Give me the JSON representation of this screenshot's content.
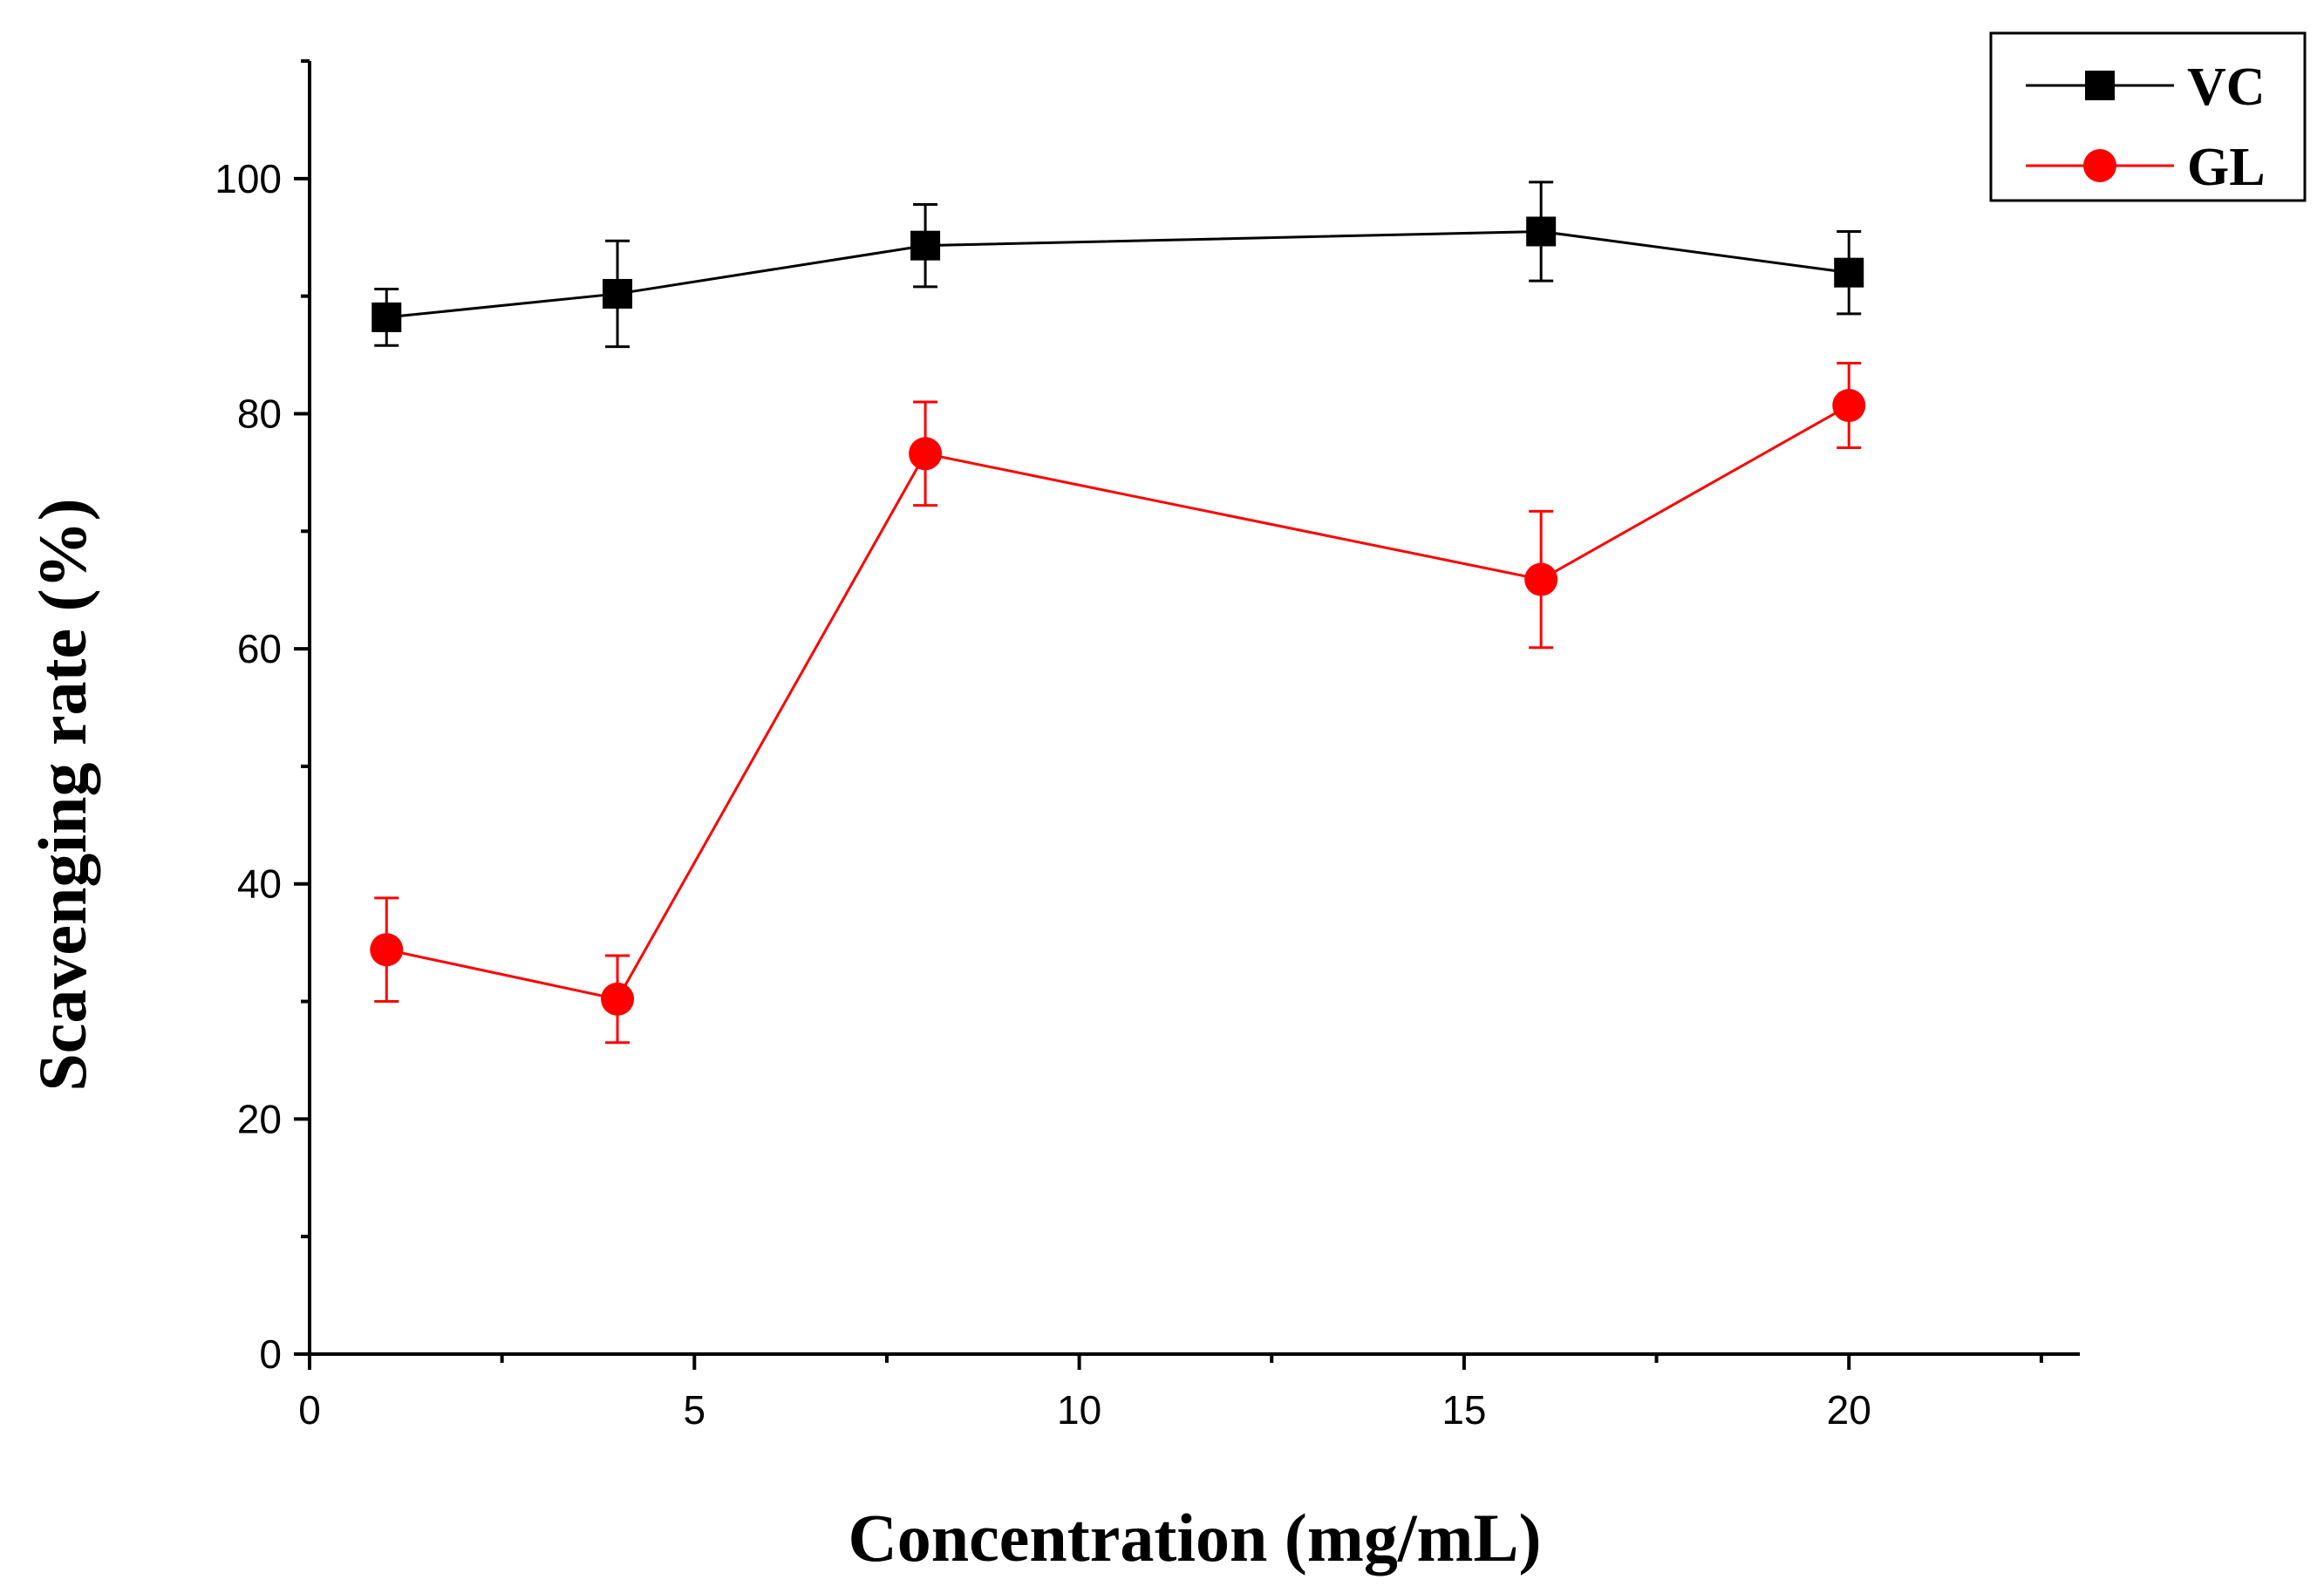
{
  "chart_data": {
    "type": "line",
    "title": "",
    "xlabel": "Concentration (mg/mL)",
    "ylabel": "Scavenging rate (%)",
    "xlim": [
      0,
      23
    ],
    "ylim": [
      0,
      110
    ],
    "xticks": [
      0,
      5,
      10,
      15,
      20
    ],
    "yticks": [
      0,
      20,
      40,
      60,
      80,
      100
    ],
    "x_tick_labels": [
      "0",
      "5",
      "10",
      "15",
      "20"
    ],
    "y_tick_labels": [
      "0",
      "20",
      "40",
      "60",
      "80",
      "100"
    ],
    "grid": false,
    "legend_position": "top-right",
    "series": [
      {
        "name": "VC",
        "color": "#000000",
        "marker": "square",
        "x": [
          1,
          4,
          8,
          16,
          20
        ],
        "y": [
          88.2,
          90.2,
          94.3,
          95.5,
          92.0
        ],
        "error": [
          2.4,
          4.5,
          3.5,
          4.2,
          3.5
        ]
      },
      {
        "name": "GL",
        "color": "#ff0000",
        "marker": "circle",
        "x": [
          1,
          4,
          8,
          16,
          20
        ],
        "y": [
          34.4,
          30.2,
          76.6,
          65.9,
          80.7
        ],
        "error": [
          4.4,
          3.7,
          4.4,
          5.8,
          3.6
        ]
      }
    ]
  }
}
